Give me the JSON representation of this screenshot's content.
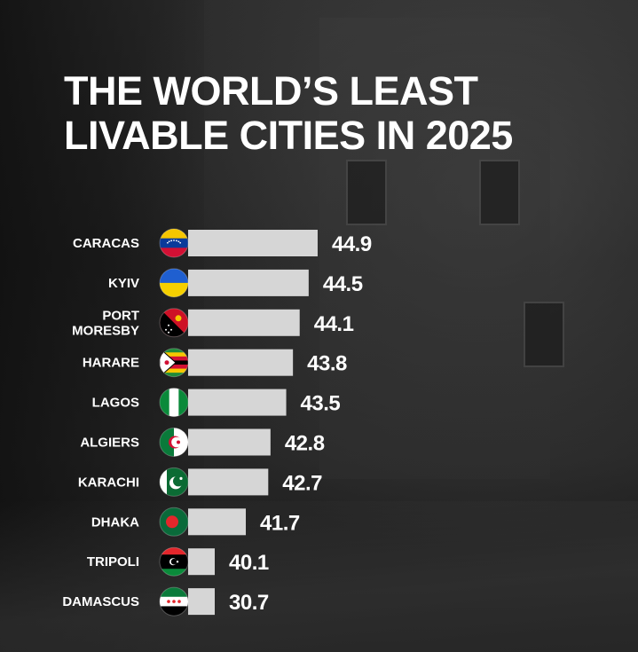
{
  "title_line1": "THE WORLD’S LEAST",
  "title_line2": "LIVABLE CITIES IN 2025",
  "chart_data": {
    "type": "bar",
    "orientation": "horizontal",
    "title": "THE WORLD’S LEAST LIVABLE CITIES IN 2025",
    "xlabel": "",
    "ylabel": "",
    "grid": false,
    "categories": [
      "CARACAS",
      "KYIV",
      "PORT MORESBY",
      "HARARE",
      "LAGOS",
      "ALGIERS",
      "KARACHI",
      "DHAKA",
      "TRIPOLI",
      "DAMASCUS"
    ],
    "category_lines": [
      [
        "CARACAS"
      ],
      [
        "KYIV"
      ],
      [
        "PORT",
        "MORESBY"
      ],
      [
        "HARARE"
      ],
      [
        "LAGOS"
      ],
      [
        "ALGIERS"
      ],
      [
        "KARACHI"
      ],
      [
        "DHAKA"
      ],
      [
        "TRIPOLI"
      ],
      [
        "DAMASCUS"
      ]
    ],
    "values": [
      44.9,
      44.5,
      44.1,
      43.8,
      43.5,
      42.8,
      42.7,
      41.7,
      40.1,
      30.7
    ],
    "flags": [
      "venezuela-flag-icon",
      "ukraine-flag-icon",
      "papua-new-guinea-flag-icon",
      "zimbabwe-flag-icon",
      "nigeria-flag-icon",
      "algeria-flag-icon",
      "pakistan-flag-icon",
      "bangladesh-flag-icon",
      "libya-flag-icon",
      "syria-flag-icon"
    ],
    "bar_color": "#d6d6d6",
    "label_color": "#ffffff"
  }
}
